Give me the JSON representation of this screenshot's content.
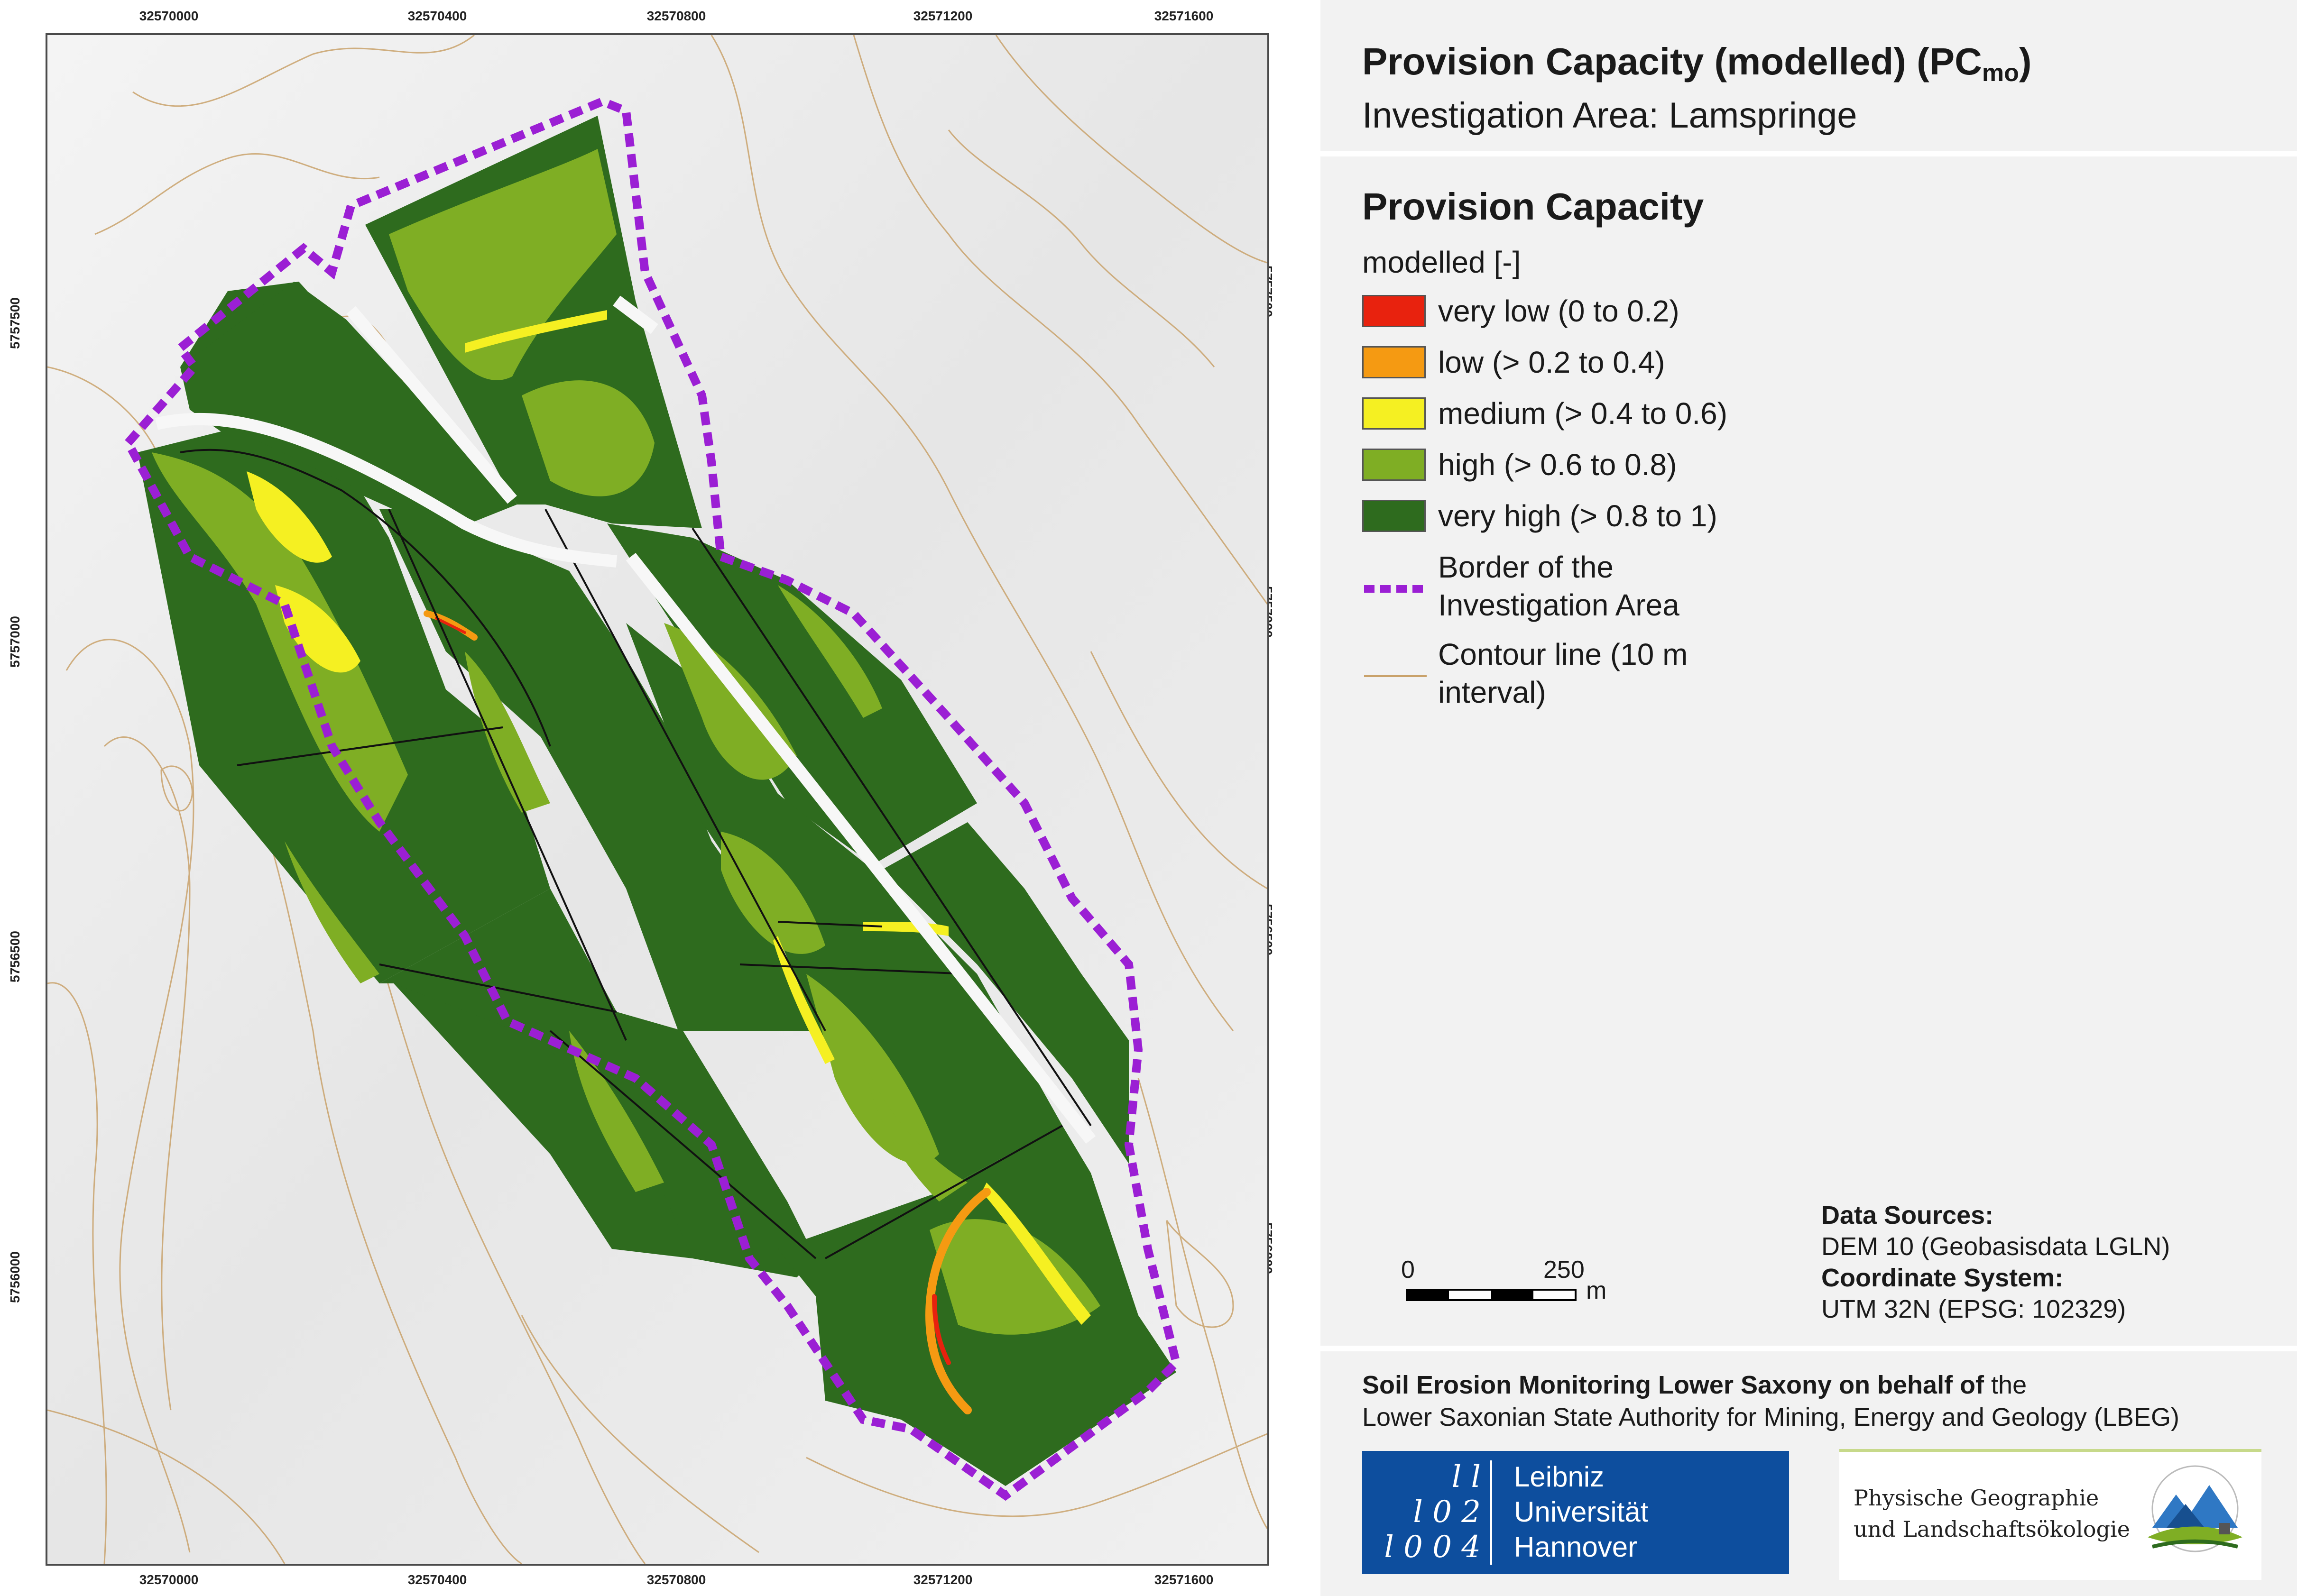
{
  "map": {
    "x_ticks": [
      "32570000",
      "32570400",
      "32570800",
      "32571200",
      "32571600"
    ],
    "y_ticks": [
      "5757500",
      "5757000",
      "5756500",
      "5756000"
    ],
    "colors": {
      "very_low": "#e8220e",
      "low": "#f59a12",
      "medium": "#f5f022",
      "high": "#7fae24",
      "very_high": "#2e6b1e",
      "border": "#9b1fd4",
      "contour": "#c9a26b",
      "hillshade": "#ececec"
    }
  },
  "title": {
    "main": "Provision Capacity (modelled) (PC",
    "main_sub": "mo",
    "main_close": ")",
    "subtitle": "Investigation Area: Lamspringe"
  },
  "legend": {
    "title": "Provision Capacity",
    "subtitle": "modelled [-]",
    "items": [
      {
        "label": "very low (0 to  0.2)",
        "color": "#e8220e"
      },
      {
        "label": "low (> 0.2 to  0.4)",
        "color": "#f59a12"
      },
      {
        "label": "medium (> 0.4 to 0.6)",
        "color": "#f5f022"
      },
      {
        "label": "high (> 0.6 to 0.8)",
        "color": "#7fae24"
      },
      {
        "label": "very high (> 0.8 to 1)",
        "color": "#2e6b1e"
      }
    ],
    "border_label": "Border of the Investigation Area",
    "contour_label": "Contour line (10 m interval)"
  },
  "scalebar": {
    "zero": "0",
    "distance": "250",
    "unit": "m"
  },
  "sources": {
    "data_sources_heading": "Data Sources:",
    "data_sources_value": "DEM 10 (Geobasisdata LGLN)",
    "crs_heading": "Coordinate System:",
    "crs_value": "UTM 32N (EPSG: 102329)"
  },
  "footer": {
    "line1_bold": "Soil Erosion Monitoring Lower Saxony on behalf of",
    "line1_rest": " the",
    "line2": "Lower Saxonian State Authority for Mining, Energy and Geology (LBEG)",
    "logo_luh_lines": [
      "Leibniz",
      "Universität",
      "Hannover"
    ],
    "logo_luh_glyphs": [
      "l l",
      "l 0 2",
      "l 0 0 4"
    ],
    "logo_pg_lines": [
      "Physische Geographie",
      "und Landschaftsökologie"
    ]
  }
}
